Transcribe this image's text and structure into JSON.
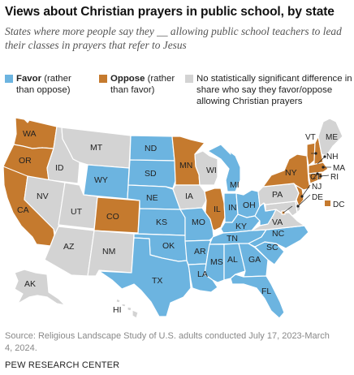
{
  "title": "Views about Christian prayers in public school, by state",
  "subtitle": "States where more people say they __ allowing public school teachers to lead their classes in prayers that refer to Jesus",
  "legend": {
    "favor": {
      "label": "Favor",
      "note": " (rather than oppose)"
    },
    "oppose": {
      "label": "Oppose",
      "note": " (rather than favor)"
    },
    "no_difference": {
      "label": "No statistically significant difference in share who say they favor/oppose allowing Christian prayers"
    }
  },
  "colors": {
    "favor": "#6cb4e0",
    "oppose": "#c57a2e",
    "no_difference": "#d3d3d3"
  },
  "map": {
    "states": {
      "WA": {
        "label": "WA",
        "category": "oppose"
      },
      "OR": {
        "label": "OR",
        "category": "oppose"
      },
      "CA": {
        "label": "CA",
        "category": "oppose"
      },
      "ID": {
        "label": "ID",
        "category": "no_difference"
      },
      "NV": {
        "label": "NV",
        "category": "no_difference"
      },
      "MT": {
        "label": "MT",
        "category": "no_difference"
      },
      "WY": {
        "label": "WY",
        "category": "favor"
      },
      "UT": {
        "label": "UT",
        "category": "no_difference"
      },
      "AZ": {
        "label": "AZ",
        "category": "no_difference"
      },
      "CO": {
        "label": "CO",
        "category": "oppose"
      },
      "NM": {
        "label": "NM",
        "category": "no_difference"
      },
      "ND": {
        "label": "ND",
        "category": "favor"
      },
      "SD": {
        "label": "SD",
        "category": "favor"
      },
      "NE": {
        "label": "NE",
        "category": "favor"
      },
      "KS": {
        "label": "KS",
        "category": "favor"
      },
      "OK": {
        "label": "OK",
        "category": "favor"
      },
      "TX": {
        "label": "TX",
        "category": "favor"
      },
      "MN": {
        "label": "MN",
        "category": "oppose"
      },
      "IA": {
        "label": "IA",
        "category": "no_difference"
      },
      "MO": {
        "label": "MO",
        "category": "favor"
      },
      "AR": {
        "label": "AR",
        "category": "favor"
      },
      "LA": {
        "label": "LA",
        "category": "favor"
      },
      "WI": {
        "label": "WI",
        "category": "no_difference"
      },
      "IL": {
        "label": "IL",
        "category": "oppose"
      },
      "MI": {
        "label": "MI",
        "category": "favor"
      },
      "IN": {
        "label": "IN",
        "category": "favor"
      },
      "OH": {
        "label": "OH",
        "category": "favor"
      },
      "KY": {
        "label": "KY",
        "category": "favor"
      },
      "TN": {
        "label": "TN",
        "category": "favor"
      },
      "MS": {
        "label": "MS",
        "category": "favor"
      },
      "AL": {
        "label": "AL",
        "category": "favor"
      },
      "GA": {
        "label": "GA",
        "category": "favor"
      },
      "FL": {
        "label": "FL",
        "category": "favor"
      },
      "SC": {
        "label": "SC",
        "category": "favor"
      },
      "NC": {
        "label": "NC",
        "category": "favor"
      },
      "VA": {
        "label": "VA",
        "category": "no_difference"
      },
      "WV": {
        "label": "",
        "category": "favor"
      },
      "PA": {
        "label": "PA",
        "category": "no_difference"
      },
      "NY": {
        "label": "NY",
        "category": "oppose"
      },
      "VT": {
        "label": "VT",
        "category": "oppose"
      },
      "NH": {
        "label": "NH",
        "category": "oppose"
      },
      "ME": {
        "label": "ME",
        "category": "no_difference"
      },
      "MA": {
        "label": "MA",
        "category": "oppose"
      },
      "CT": {
        "label": "CT",
        "category": "oppose"
      },
      "RI": {
        "label": "RI",
        "category": "oppose"
      },
      "NJ": {
        "label": "NJ",
        "category": "oppose"
      },
      "DE": {
        "label": "DE",
        "category": "no_difference"
      },
      "MD": {
        "label": "",
        "category": "no_difference"
      },
      "DC": {
        "label": "DC",
        "category": "oppose"
      },
      "AK": {
        "label": "AK",
        "category": "no_difference"
      },
      "HI": {
        "label": "HI",
        "category": "no_difference"
      }
    }
  },
  "source": "Source: Religious Landscape Study of U.S. adults conducted July 17, 2023-March 4, 2024.",
  "org": "PEW RESEARCH CENTER"
}
